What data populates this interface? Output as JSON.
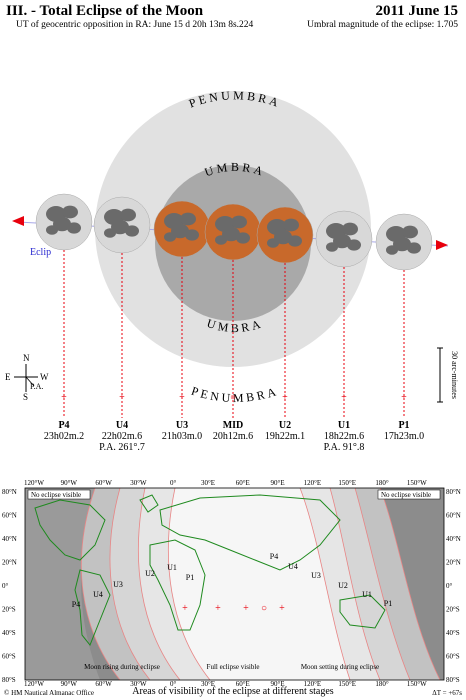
{
  "header": {
    "title": "III. - Total Eclipse of the Moon",
    "date": "2011 June 15",
    "ut_opposition": "UT of geocentric opposition in RA: June 15",
    "ut_opposition_value": "d 20h 13m 8s.224",
    "umbral_magnitude": "Umbral magnitude of the eclipse: 1.705"
  },
  "diagram": {
    "penumbra_label": "PENUMBRA",
    "umbra_label": "UMBRA",
    "ecliptic_label": "Eclip",
    "scale_label": "30 arc-minutes",
    "compass": {
      "n": "N",
      "s": "S",
      "e": "E",
      "w": "W",
      "pa": "P.A."
    },
    "contacts": [
      {
        "id": "P4",
        "time": "23h02m.2",
        "pa": ""
      },
      {
        "id": "U4",
        "time": "22h02m.6",
        "pa": "P.A. 261°.7"
      },
      {
        "id": "U3",
        "time": "21h03m.0",
        "pa": ""
      },
      {
        "id": "MID",
        "time": "20h12m.6",
        "pa": ""
      },
      {
        "id": "U2",
        "time": "19h22m.1",
        "pa": ""
      },
      {
        "id": "U1",
        "time": "18h22m.6",
        "pa": "P.A. 91°.8"
      },
      {
        "id": "P1",
        "time": "17h23m.0",
        "pa": ""
      }
    ],
    "colors": {
      "penumbra": "#e1e1e1",
      "umbra": "#a9a9a9",
      "eclipsed_moon": "#c8692b",
      "moon": "#d8d8d8",
      "maria": "#6a6a6a",
      "accent": "#e8000d"
    }
  },
  "map": {
    "top_ticks": [
      "120°W",
      "90°W",
      "60°W",
      "30°W",
      "0°",
      "30°E",
      "60°E",
      "90°E",
      "120°E",
      "150°E",
      "180°",
      "150°W"
    ],
    "lat_ticks": [
      "80°N",
      "60°N",
      "40°N",
      "20°N",
      "0°",
      "20°S",
      "40°S",
      "60°S",
      "80°S"
    ],
    "no_eclipse_left": "No eclipse visible",
    "no_eclipse_right": "No eclipse visible",
    "rising_label": "Moon rising during eclipse",
    "full_label": "Full eclipse visible",
    "setting_label": "Moon setting during eclipse",
    "curve_labels": [
      "P4",
      "U4",
      "U3",
      "U2",
      "U1",
      "P1"
    ],
    "curve_labels_right": [
      "P4",
      "U4",
      "U3",
      "U2",
      "U1",
      "P1"
    ],
    "footer_title": "Areas of visibility of the eclipse at different stages",
    "credit": "© HM Nautical Almanac Office",
    "delta_t": "ΔT = +67s"
  }
}
